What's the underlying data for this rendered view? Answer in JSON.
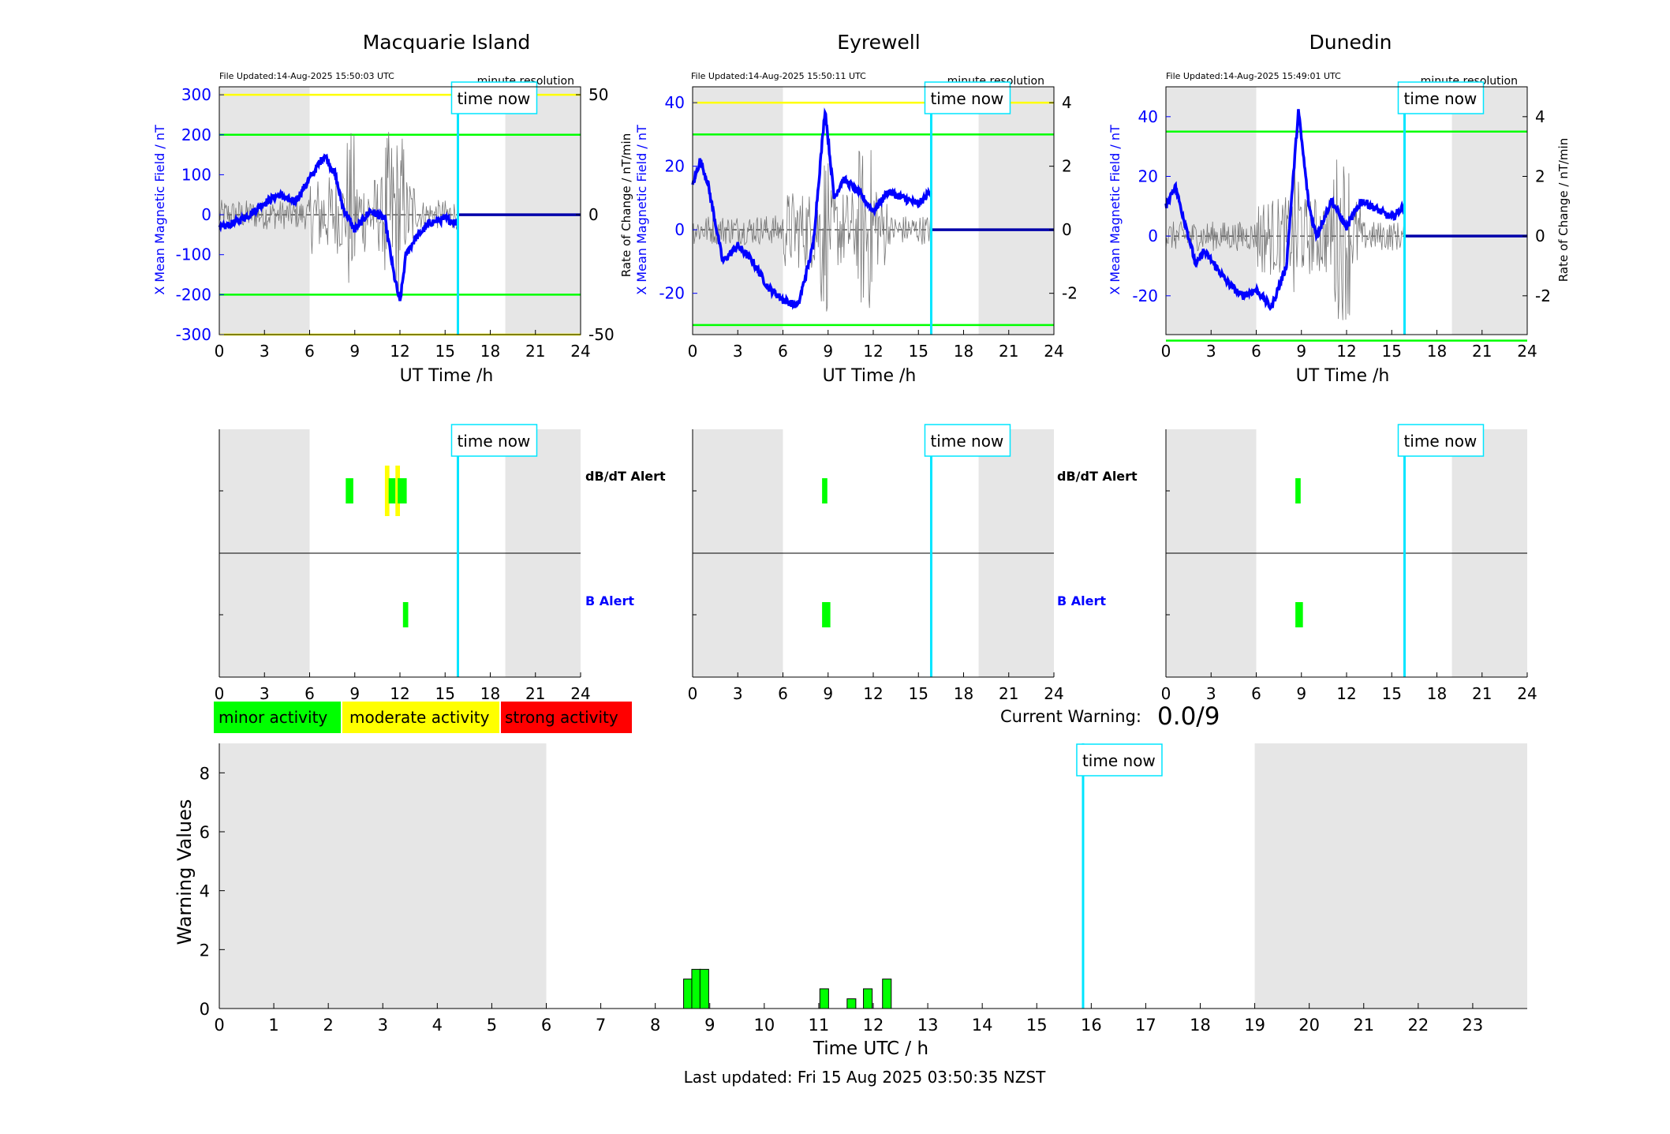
{
  "stations": [
    {
      "title": "Macquarie Island",
      "file_updated": "File Updated:14-Aug-2025 15:50:03 UTC",
      "resolution": "minute resolution",
      "left_ylabel": "X Mean Magnetic Field / nT",
      "right_ylabel": "",
      "ylim": [
        -300,
        320
      ],
      "yticks": [
        -300,
        -200,
        -100,
        0,
        100,
        200,
        300
      ],
      "rlim": [
        -50,
        53.3
      ],
      "rticks": [
        -50,
        0,
        50
      ],
      "green_lines": [
        -200,
        200
      ],
      "yellow_lines": [
        -300,
        300
      ]
    },
    {
      "title": "Eyrewell",
      "file_updated": "File Updated:14-Aug-2025 15:50:11 UTC",
      "resolution": "minute resolution",
      "left_ylabel": "X Mean Magnetic Field / nT",
      "right_ylabel": "Rate of Change / nT/min",
      "ylim": [
        -33,
        45
      ],
      "yticks": [
        -20,
        0,
        20,
        40
      ],
      "rlim": [
        -3.3,
        4.5
      ],
      "rticks": [
        -2,
        0,
        2,
        4
      ],
      "green_lines": [
        -30,
        30
      ],
      "yellow_lines": [
        40
      ]
    },
    {
      "title": "Dunedin",
      "file_updated": "File Updated:14-Aug-2025 15:49:01 UTC",
      "resolution": "minute resolution",
      "left_ylabel": "X Mean Magnetic Field / nT",
      "right_ylabel": "Rate of Change / nT/min",
      "ylim": [
        -33,
        50
      ],
      "yticks": [
        -20,
        0,
        20,
        40
      ],
      "rlim": [
        -3.3,
        5
      ],
      "rticks": [
        -2,
        0,
        2,
        4
      ],
      "green_lines": [
        -35,
        35
      ],
      "yellow_lines": []
    }
  ],
  "common": {
    "xlabel": "UT Time /h",
    "xticks": [
      0,
      3,
      6,
      9,
      12,
      15,
      18,
      21,
      24
    ],
    "night_shading": [
      [
        0,
        6
      ],
      [
        19,
        24
      ]
    ],
    "time_now_hour": 15.85,
    "time_now_label": "time now",
    "dbdt_alert_label": "dB/dT Alert",
    "b_alert_label": "B Alert"
  },
  "alerts": [
    {
      "dbdt": [
        {
          "start": 8.4,
          "end": 8.9,
          "level": "minor"
        },
        {
          "start": 11.0,
          "end": 11.3,
          "level": "moderate"
        },
        {
          "start": 11.25,
          "end": 11.7,
          "level": "minor"
        },
        {
          "start": 11.7,
          "end": 12.0,
          "level": "moderate"
        },
        {
          "start": 11.85,
          "end": 12.45,
          "level": "minor"
        }
      ],
      "b": [
        {
          "start": 12.2,
          "end": 12.55,
          "level": "minor"
        }
      ]
    },
    {
      "dbdt": [
        {
          "start": 8.6,
          "end": 8.95,
          "level": "minor"
        }
      ],
      "b": [
        {
          "start": 8.6,
          "end": 9.15,
          "level": "minor"
        }
      ]
    },
    {
      "dbdt": [
        {
          "start": 8.6,
          "end": 8.95,
          "level": "minor"
        }
      ],
      "b": [
        {
          "start": 8.6,
          "end": 9.1,
          "level": "minor"
        }
      ]
    }
  ],
  "legend": [
    {
      "label": "minor activity",
      "color": "#00ff00"
    },
    {
      "label": "moderate activity",
      "color": "#ffff00"
    },
    {
      "label": "strong activity",
      "color": "#ff0000"
    }
  ],
  "current_warning": {
    "label": "Current Warning:",
    "value": "0.0/9"
  },
  "chart_data": {
    "type": "bar",
    "ylabel": "Warning Values",
    "xlabel": "Time UTC / h",
    "xlim": [
      0,
      24
    ],
    "ylim": [
      0,
      9
    ],
    "yticks": [
      0,
      2,
      4,
      6,
      8
    ],
    "xticks": [
      0,
      1,
      2,
      3,
      4,
      5,
      6,
      7,
      8,
      9,
      10,
      11,
      12,
      13,
      14,
      15,
      16,
      17,
      18,
      19,
      20,
      21,
      22,
      23
    ],
    "x": [
      8.6,
      8.75,
      8.9,
      11.1,
      11.6,
      11.9,
      12.25
    ],
    "values": [
      1.0,
      1.33,
      1.33,
      0.67,
      0.33,
      0.67,
      1.0
    ],
    "bar_width_hours": 0.16,
    "bar_color": "#00ff00",
    "night_shading": [
      [
        0,
        6
      ],
      [
        19,
        24
      ]
    ],
    "time_now_hour": 15.85,
    "time_now_label": "time now"
  },
  "footer": {
    "last_updated": "Last updated: Fri 15 Aug 2025 03:50:35 NZST"
  }
}
